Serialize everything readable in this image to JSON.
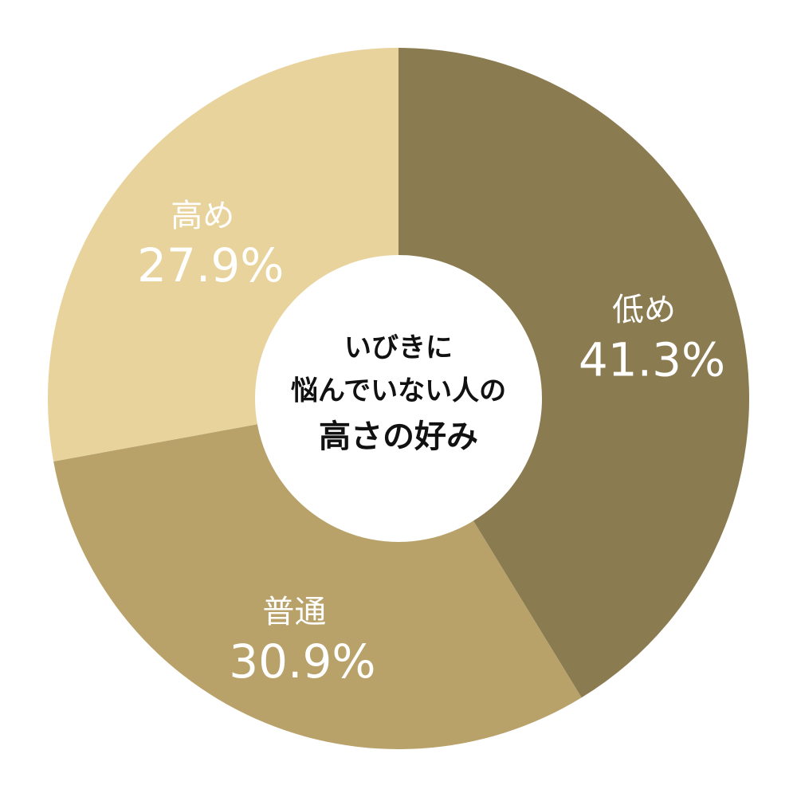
{
  "chart_data": {
    "type": "donut",
    "title_lines": [
      "いびきに",
      "悩んでいない人の",
      "高さの好み"
    ],
    "categories": [
      "低め",
      "普通",
      "高め"
    ],
    "values": [
      41.3,
      30.9,
      27.9
    ],
    "value_labels": [
      "41.3%",
      "30.9%",
      "27.9%"
    ],
    "colors": [
      "#8b7b50",
      "#b8a26a",
      "#e8d39c"
    ]
  }
}
